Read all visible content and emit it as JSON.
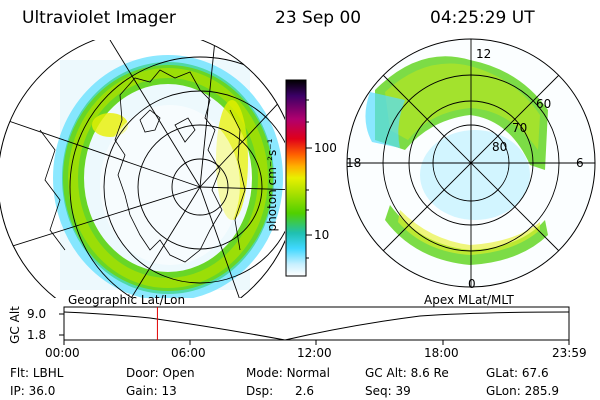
{
  "header": {
    "title": "Ultraviolet Imager",
    "date": "23 Sep 00",
    "time": "04:25:29 UT"
  },
  "colorbar": {
    "unit_label": "photon cm⁻²s⁻¹",
    "ticks": [
      "100",
      "10"
    ],
    "colors": [
      "#000000",
      "#3b0066",
      "#b0006e",
      "#e0001a",
      "#ff6000",
      "#ffb000",
      "#e8f000",
      "#a8e000",
      "#50d000",
      "#20c0b0",
      "#40d8ff",
      "#c8f0ff",
      "#ffffff"
    ]
  },
  "left_map": {
    "label": "Geographic Lat/Lon"
  },
  "right_polar": {
    "label": "Apex MLat/MLT",
    "mlt_labels": {
      "top": "12",
      "left": "18",
      "right": "6",
      "bottom": "0"
    },
    "lat_labels": [
      "60",
      "70",
      "80"
    ]
  },
  "alt_plot": {
    "ylabel": "GC Alt",
    "y_ticks": [
      "9.0",
      "1.8"
    ],
    "x_ticks": [
      "00:00",
      "06:00",
      "12:00",
      "18:00",
      "23:59"
    ],
    "current_time_fraction": 0.185
  },
  "info": {
    "row1": [
      {
        "label": "Flt:",
        "value": "LBHL"
      },
      {
        "label": "Door:",
        "value": "Open"
      },
      {
        "label": "Mode:",
        "value": "Normal"
      },
      {
        "label": "GC Alt:",
        "value": "8.6 Re"
      },
      {
        "label": "GLat:",
        "value": "67.6"
      }
    ],
    "row2": [
      {
        "label": "IP:",
        "value": "36.0"
      },
      {
        "label": "Gain:",
        "value": "13"
      },
      {
        "label": "Dsp:",
        "value": "2.6"
      },
      {
        "label": "Seq:",
        "value": "39"
      },
      {
        "label": "GLon:",
        "value": "285.9"
      }
    ]
  }
}
